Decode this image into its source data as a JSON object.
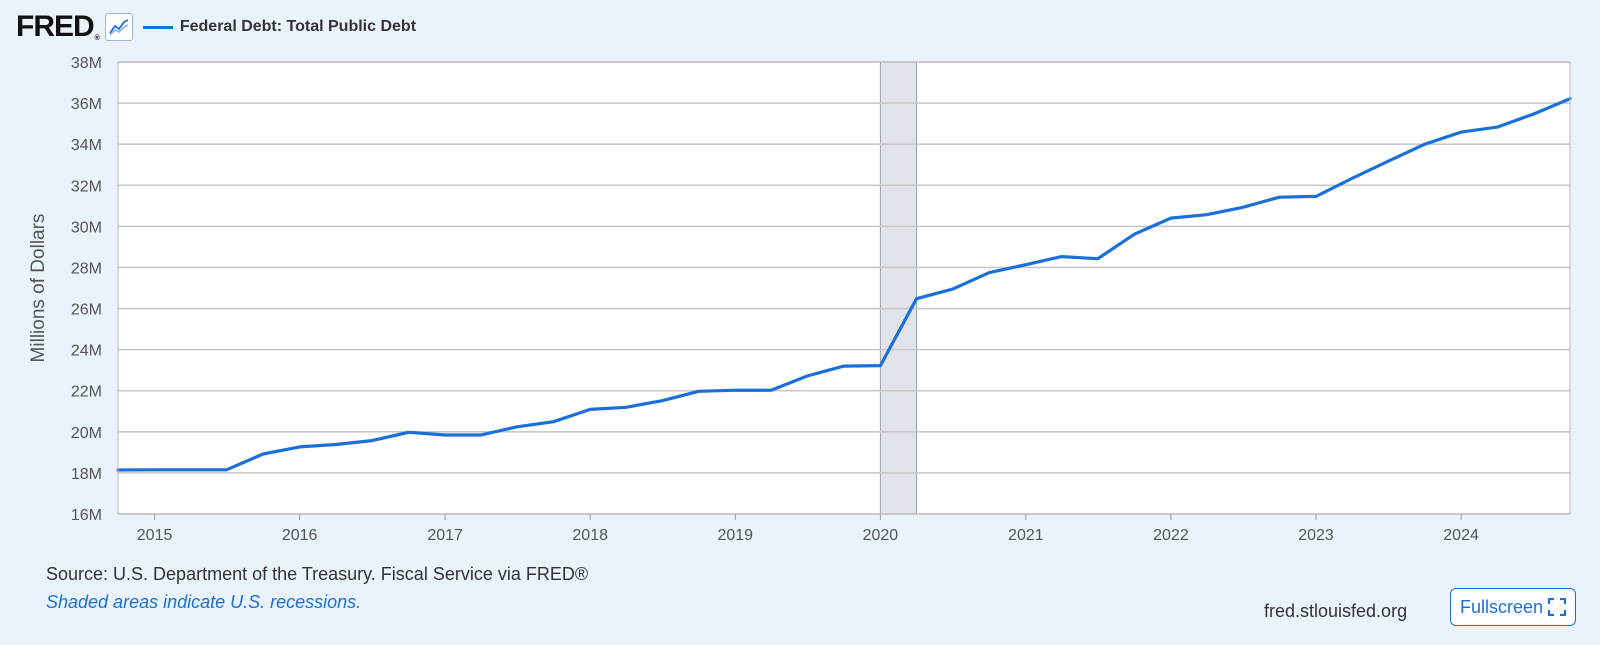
{
  "header": {
    "logo": "FRED",
    "logo_reg": "®",
    "graph_icon": "line-chart-icon",
    "legend_label": "Federal Debt: Total Public Debt"
  },
  "colors": {
    "series": "#1a6fd8",
    "recession_fill": "#e0e4ea",
    "background": "#eaf2fb",
    "plot_background": "#ffffff",
    "grid": "#c9c9c9"
  },
  "chart_data": {
    "type": "line",
    "title": "",
    "xlabel": "",
    "ylabel": "Millions of Dollars",
    "x_ticks": [
      "2015",
      "2016",
      "2017",
      "2018",
      "2019",
      "2020",
      "2021",
      "2022",
      "2023",
      "2024"
    ],
    "y_ticks": [
      "16M",
      "18M",
      "20M",
      "22M",
      "24M",
      "26M",
      "28M",
      "30M",
      "32M",
      "34M",
      "36M",
      "38M"
    ],
    "ylim": [
      16000000,
      38000000
    ],
    "xlim": [
      "2014-10-01",
      "2024-10-01"
    ],
    "grid": true,
    "legend": "top-left",
    "recessions": [
      {
        "start": "2020-01-01",
        "end": "2020-04-01"
      }
    ],
    "series": [
      {
        "name": "Federal Debt: Total Public Debt",
        "x": [
          "2014-10-01",
          "2015-01-01",
          "2015-04-01",
          "2015-07-01",
          "2015-10-01",
          "2016-01-01",
          "2016-04-01",
          "2016-07-01",
          "2016-10-01",
          "2017-01-01",
          "2017-04-01",
          "2017-07-01",
          "2017-10-01",
          "2018-01-01",
          "2018-04-01",
          "2018-07-01",
          "2018-10-01",
          "2019-01-01",
          "2019-04-01",
          "2019-07-01",
          "2019-10-01",
          "2020-01-01",
          "2020-04-01",
          "2020-07-01",
          "2020-10-01",
          "2021-01-01",
          "2021-04-01",
          "2021-07-01",
          "2021-10-01",
          "2022-01-01",
          "2022-04-01",
          "2022-07-01",
          "2022-10-01",
          "2023-01-01",
          "2023-04-01",
          "2023-07-01",
          "2023-10-01",
          "2024-01-01",
          "2024-04-01",
          "2024-07-01",
          "2024-10-01"
        ],
        "values": [
          18141000,
          18152000,
          18152000,
          18151000,
          18922000,
          19265000,
          19381000,
          19573000,
          19977000,
          19847000,
          19846000,
          20245000,
          20493000,
          21090000,
          21195000,
          21516000,
          21974000,
          22028000,
          22023000,
          22719000,
          23201000,
          23224000,
          26477000,
          26946000,
          27748000,
          28133000,
          28529000,
          28428000,
          29617000,
          30401000,
          30568000,
          30929000,
          31419000,
          31458000,
          32332000,
          33167000,
          33995000,
          34587000,
          34832000,
          35464000,
          36215000
        ]
      }
    ]
  },
  "footer": {
    "source": "Source: U.S. Department of the Treasury. Fiscal Service via FRED®",
    "note": "Shaded areas indicate U.S. recessions.",
    "site": "fred.stlouisfed.org",
    "fullscreen_label": "Fullscreen",
    "fullscreen_icon": "expand-icon"
  }
}
